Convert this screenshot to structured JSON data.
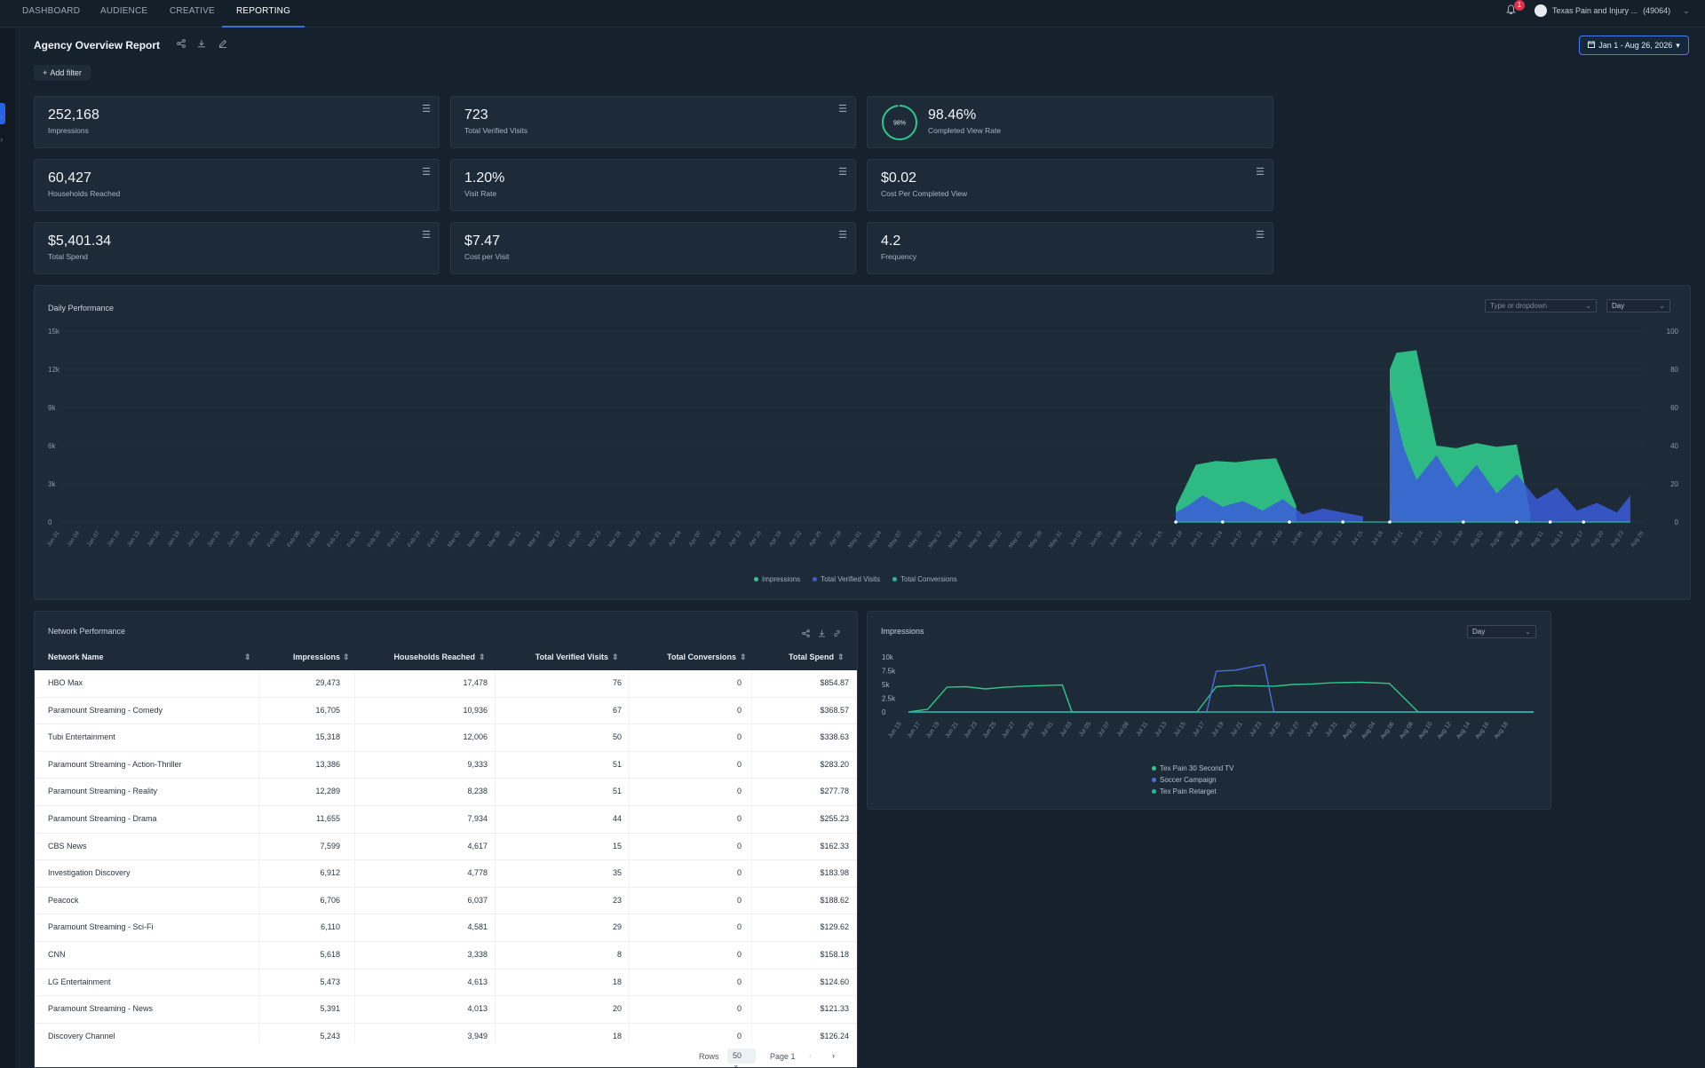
{
  "nav": {
    "tabs": [
      "DASHBOARD",
      "AUDIENCE",
      "CREATIVE",
      "REPORTING"
    ],
    "active": "REPORTING",
    "notification_count": "1",
    "account": "Texas Pain and Injury ...",
    "account_id": "(49064)"
  },
  "report": {
    "title": "Agency Overview Report",
    "date_range": "Jan 1 - Aug 26, 2026",
    "add_filter": "Add filter"
  },
  "kpis": [
    {
      "value": "252,168",
      "label": "Impressions"
    },
    {
      "value": "723",
      "label": "Total Verified Visits"
    },
    {
      "value": "98.46%",
      "label": "Completed View Rate",
      "ring": "98%",
      "ring_fraction": 0.9846
    },
    {
      "value": "60,427",
      "label": "Households Reached"
    },
    {
      "value": "1.20%",
      "label": "Visit Rate"
    },
    {
      "value": "$0.02",
      "label": "Cost Per Completed View"
    },
    {
      "value": "$5,401.34",
      "label": "Total Spend"
    },
    {
      "value": "$7.47",
      "label": "Cost per Visit"
    },
    {
      "value": "4.2",
      "label": "Frequency"
    }
  ],
  "daily": {
    "title": "Daily Performance",
    "dropdown_placeholder": "Type or dropdown",
    "granularity": "Day",
    "y_left_ticks": [
      "15k",
      "12k",
      "9k",
      "6k",
      "3k",
      "0"
    ],
    "y_right_ticks": [
      "100",
      "80",
      "60",
      "40",
      "20",
      "0"
    ],
    "legend": [
      "Impressions",
      "Total Verified Visits",
      "Total Conversions"
    ]
  },
  "network": {
    "title": "Network Performance",
    "columns": [
      "Network Name",
      "Impressions",
      "Households Reached",
      "Total Verified Visits",
      "Total Conversions",
      "Total Spend"
    ],
    "rows": [
      [
        "HBO Max",
        "29,473",
        "17,478",
        "76",
        "0",
        "$854.87"
      ],
      [
        "Paramount Streaming - Comedy",
        "16,705",
        "10,936",
        "67",
        "0",
        "$368.57"
      ],
      [
        "Tubi Entertainment",
        "15,318",
        "12,006",
        "50",
        "0",
        "$338.63"
      ],
      [
        "Paramount Streaming - Action-Thriller",
        "13,386",
        "9,333",
        "51",
        "0",
        "$283.20"
      ],
      [
        "Paramount Streaming - Reality",
        "12,289",
        "8,238",
        "51",
        "0",
        "$277.78"
      ],
      [
        "Paramount Streaming - Drama",
        "11,655",
        "7,934",
        "44",
        "0",
        "$255.23"
      ],
      [
        "CBS News",
        "7,599",
        "4,617",
        "15",
        "0",
        "$162.33"
      ],
      [
        "Investigation Discovery",
        "6,912",
        "4,778",
        "35",
        "0",
        "$183.98"
      ],
      [
        "Peacock",
        "6,706",
        "6,037",
        "23",
        "0",
        "$188.62"
      ],
      [
        "Paramount Streaming - Sci-Fi",
        "6,110",
        "4,581",
        "29",
        "0",
        "$129.62"
      ],
      [
        "CNN",
        "5,618",
        "3,338",
        "8",
        "0",
        "$158.18"
      ],
      [
        "LG Entertainment",
        "5,473",
        "4,613",
        "18",
        "0",
        "$124.60"
      ],
      [
        "Paramount Streaming - News",
        "5,391",
        "4,013",
        "20",
        "0",
        "$121.33"
      ],
      [
        "Discovery Channel",
        "5,243",
        "3,949",
        "18",
        "0",
        "$126.24"
      ]
    ],
    "pager": {
      "rows_label": "Rows",
      "rows_value": "50",
      "page_label": "Page 1"
    }
  },
  "impressions_panel": {
    "title": "Impressions",
    "granularity": "Day",
    "y_ticks": [
      "10k",
      "7.5k",
      "5k",
      "2.5k",
      "0"
    ],
    "x_ticks": [
      "Jun 15",
      "Jun 17",
      "Jun 19",
      "Jun 21",
      "Jun 23",
      "Jun 25",
      "Jun 27",
      "Jun 29",
      "Jul 01",
      "Jul 03",
      "Jul 05",
      "Jul 07",
      "Jul 09",
      "Jul 11",
      "Jul 13",
      "Jul 15",
      "Jul 17",
      "Jul 19",
      "Jul 21",
      "Jul 23",
      "Jul 25",
      "Jul 27",
      "Jul 29",
      "Jul 31",
      "Aug 02",
      "Aug 04",
      "Aug 06",
      "Aug 08",
      "Aug 10",
      "Aug 12",
      "Aug 14",
      "Aug 16",
      "Aug 18"
    ],
    "legend": [
      "Tex Pain 30 Second TV",
      "Soccer Campaign",
      "Tex Pain Retarget"
    ]
  },
  "colors": {
    "impressions": "#2fc88a",
    "visits": "#3b5bdb",
    "conversions": "#2ab7a0",
    "soccer": "#4a6fe3",
    "accent": "#3b82f6"
  },
  "chart_data": [
    {
      "type": "area",
      "title": "Daily Performance",
      "x_range": [
        "Jan 01",
        "Aug 26"
      ],
      "ylim_left": [
        0,
        15000
      ],
      "ylim_right": [
        0,
        100
      ],
      "series": [
        {
          "name": "Impressions",
          "axis": "left",
          "segments": [
            {
              "x": [
                "Jun 17",
                "Jun 20",
                "Jun 23",
                "Jun 26",
                "Jun 29",
                "Jul 02",
                "Jul 05"
              ],
              "y": [
                1200,
                4500,
                4800,
                4700,
                4900,
                5000,
                1300
              ]
            },
            {
              "x": [
                "Jul 19",
                "Jul 20",
                "Jul 23",
                "Jul 26",
                "Jul 29",
                "Aug 01",
                "Aug 04",
                "Aug 07",
                "Aug 09"
              ],
              "y": [
                12000,
                13300,
                13500,
                6000,
                5800,
                6200,
                5900,
                6100,
                800
              ]
            }
          ]
        },
        {
          "name": "Total Verified Visits",
          "axis": "right",
          "segments": [
            {
              "x": [
                "Jun 17",
                "Jun 19",
                "Jun 21",
                "Jun 24",
                "Jun 27",
                "Jun 30",
                "Jul 03",
                "Jul 06",
                "Jul 09",
                "Jul 12",
                "Jul 15"
              ],
              "y": [
                5,
                9,
                14,
                8,
                11,
                6,
                12,
                4,
                7,
                5,
                3
              ]
            },
            {
              "x": [
                "Jul 19",
                "Jul 21",
                "Jul 23",
                "Jul 26",
                "Jul 29",
                "Aug 01",
                "Aug 04",
                "Aug 07",
                "Aug 10",
                "Aug 13",
                "Aug 16",
                "Aug 19",
                "Aug 22",
                "Aug 24"
              ],
              "y": [
                70,
                40,
                22,
                35,
                18,
                30,
                15,
                25,
                12,
                18,
                6,
                10,
                5,
                14
              ]
            }
          ]
        },
        {
          "name": "Total Conversions",
          "axis": "right",
          "values": "0"
        }
      ]
    },
    {
      "type": "line",
      "title": "Impressions",
      "x_range": [
        "Jun 15",
        "Aug 19"
      ],
      "ylim": [
        0,
        10000
      ],
      "series": [
        {
          "name": "Tex Pain 30 Second TV",
          "x": [
            "Jun 15",
            "Jun 17",
            "Jun 19",
            "Jun 21",
            "Jun 23",
            "Jun 25",
            "Jun 27",
            "Jun 29",
            "Jul 01",
            "Jul 02",
            "Jul 09",
            "Jul 15",
            "Jul 17",
            "Jul 19",
            "Jul 23",
            "Jul 25",
            "Jul 27",
            "Jul 29",
            "Aug 01",
            "Aug 04",
            "Aug 07",
            "Aug 19"
          ],
          "y": [
            0,
            500,
            4500,
            4600,
            4200,
            4500,
            4700,
            4800,
            4900,
            0,
            0,
            0,
            4600,
            4800,
            4700,
            5000,
            5100,
            5300,
            5400,
            5200,
            0,
            0
          ]
        },
        {
          "name": "Soccer Campaign",
          "x": [
            "Jun 15",
            "Jul 16",
            "Jul 17",
            "Jul 19",
            "Jul 21",
            "Jul 22",
            "Jul 23",
            "Jul 25",
            "Aug 19"
          ],
          "y": [
            0,
            0,
            7400,
            7600,
            8300,
            8600,
            0,
            0,
            0
          ]
        },
        {
          "name": "Tex Pain Retarget",
          "x": [
            "Jun 15",
            "Aug 19"
          ],
          "y": [
            0,
            0
          ]
        }
      ]
    }
  ]
}
